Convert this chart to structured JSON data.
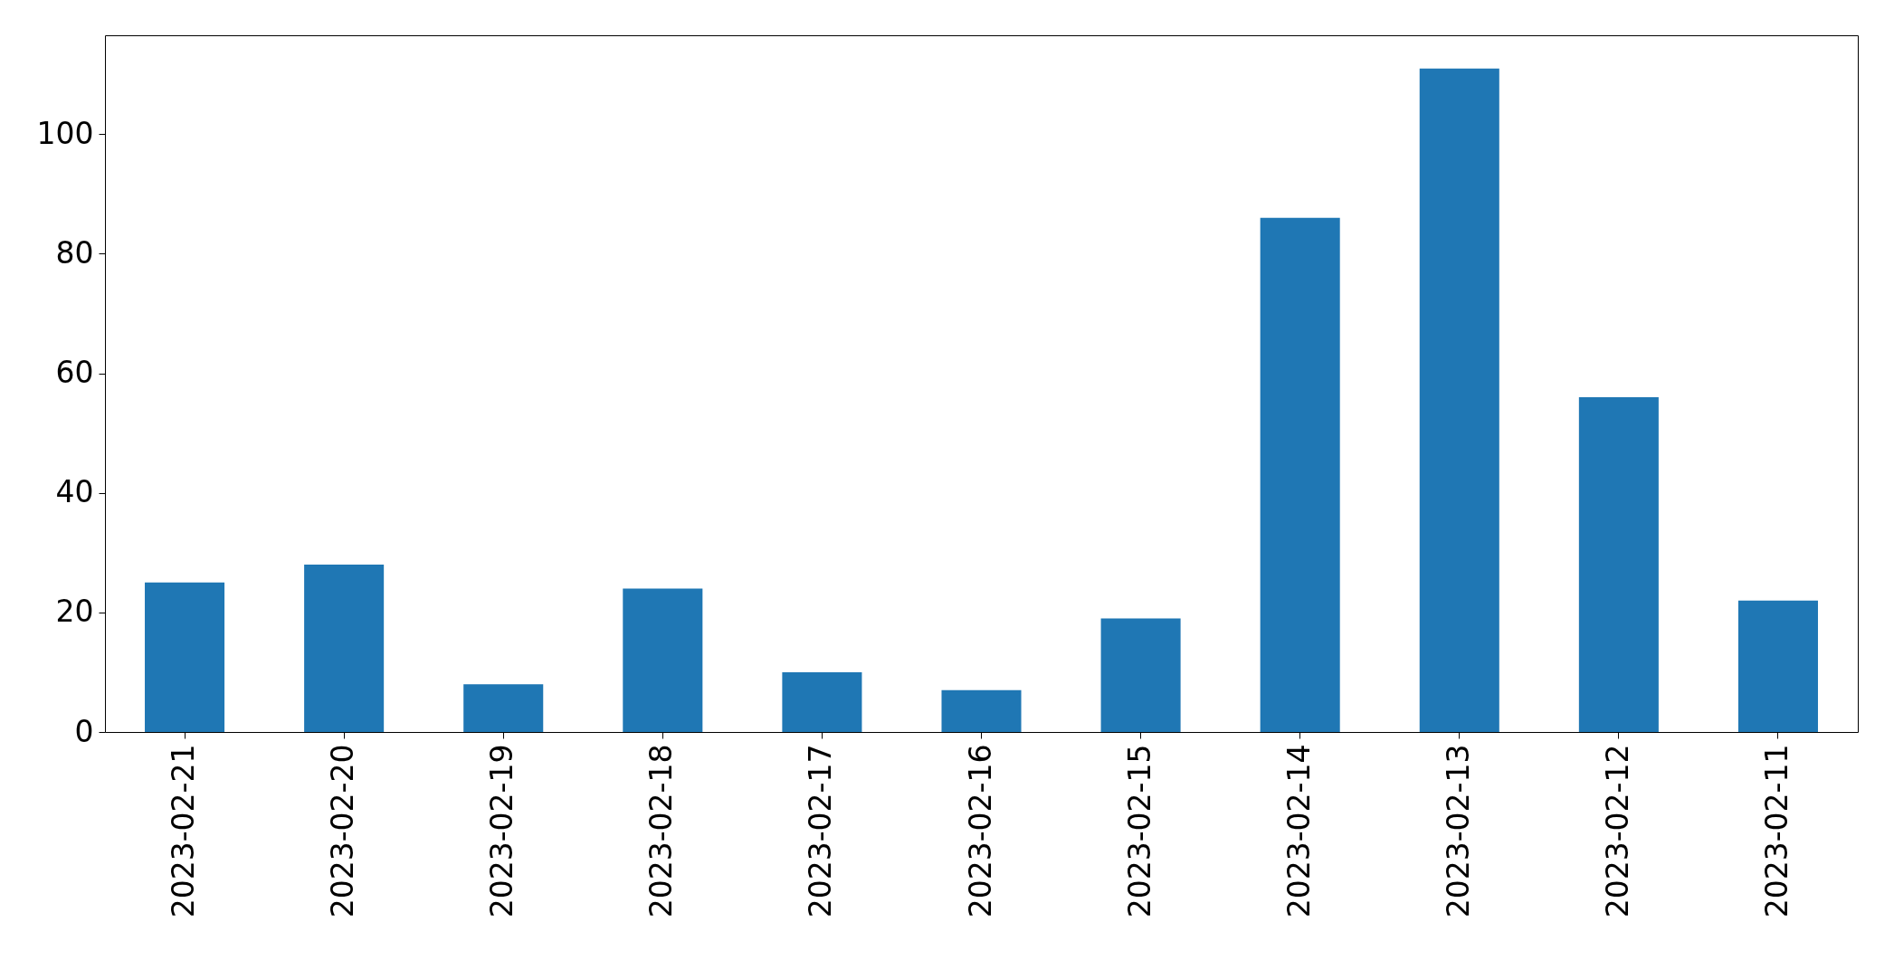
{
  "chart_data": {
    "type": "bar",
    "categories": [
      "2023-02-21",
      "2023-02-20",
      "2023-02-19",
      "2023-02-18",
      "2023-02-17",
      "2023-02-16",
      "2023-02-15",
      "2023-02-14",
      "2023-02-13",
      "2023-02-12",
      "2023-02-11"
    ],
    "values": [
      25,
      28,
      8,
      24,
      10,
      7,
      19,
      86,
      111,
      56,
      22
    ],
    "color": "#1f77b4",
    "ylim": [
      0,
      116.55
    ],
    "yticks": [
      0,
      20,
      40,
      60,
      80,
      100
    ],
    "grid": false
  }
}
